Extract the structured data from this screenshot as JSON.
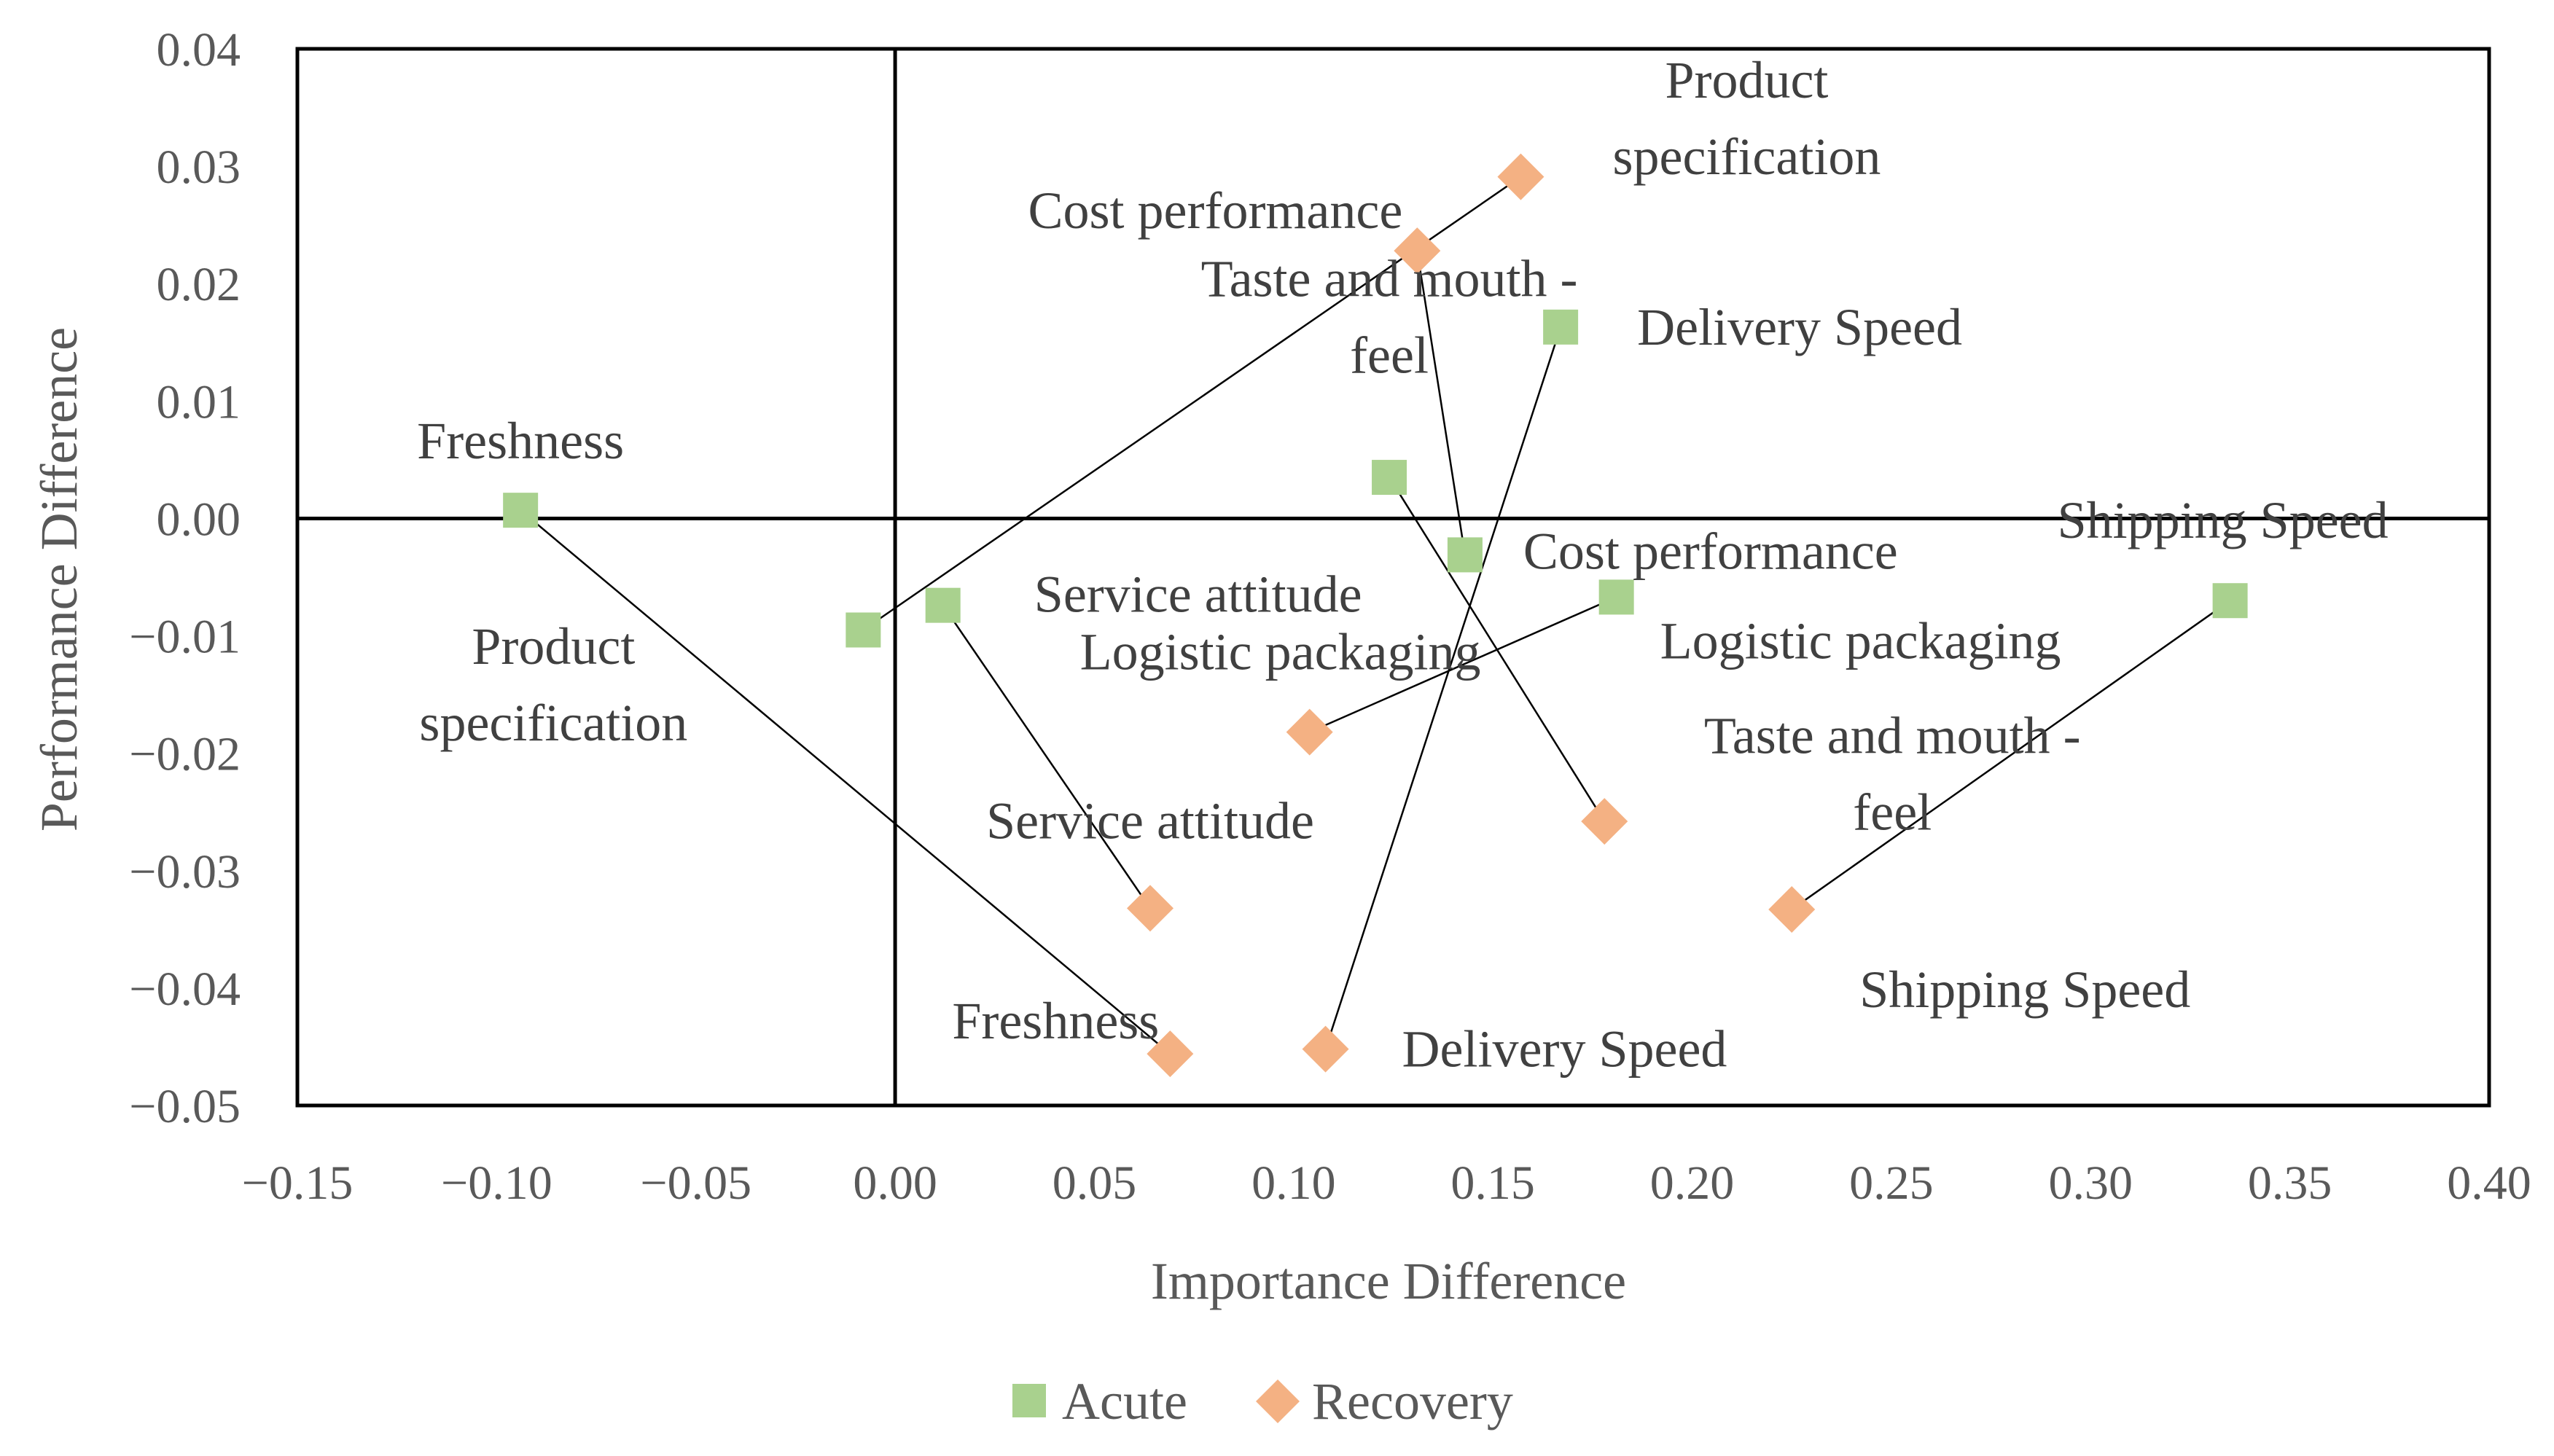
{
  "chart_data": {
    "type": "scatter",
    "xlabel": "Importance Difference",
    "ylabel": "Performance Difference",
    "xlim": [
      -0.15,
      0.4
    ],
    "ylim": [
      -0.05,
      0.04
    ],
    "x_ticks": [
      "−0.15",
      "−0.10",
      "−0.05",
      "0.00",
      "0.05",
      "0.10",
      "0.15",
      "0.20",
      "0.25",
      "0.30",
      "0.35",
      "0.40"
    ],
    "y_ticks": [
      "0.04",
      "0.03",
      "0.02",
      "0.01",
      "0.00",
      "−0.01",
      "−0.02",
      "−0.03",
      "−0.04",
      "−0.05"
    ],
    "grid": false,
    "legend_position": "bottom",
    "colors": {
      "Acute": "#a9d18e",
      "Recovery": "#f4b183"
    },
    "series": [
      {
        "name": "Acute",
        "marker": "square",
        "points": [
          {
            "label": "Freshness",
            "label_lines": [
              "Freshness"
            ],
            "x": -0.094,
            "y": 0.0007
          },
          {
            "label": "Product specification",
            "label_lines": [
              "Product",
              "specification"
            ],
            "x": -0.008,
            "y": -0.0095
          },
          {
            "label": "Service attitude",
            "label_lines": [
              "Service attitude"
            ],
            "x": 0.012,
            "y": -0.0074
          },
          {
            "label": "Taste and mouth-feel",
            "label_lines": [
              "Taste and mouth -",
              "feel"
            ],
            "x": 0.124,
            "y": 0.0035
          },
          {
            "label": "Cost performance",
            "label_lines": [
              "Cost performance"
            ],
            "x": 0.143,
            "y": -0.0031
          },
          {
            "label": "Delivery Speed",
            "label_lines": [
              "Delivery Speed"
            ],
            "x": 0.167,
            "y": 0.0163
          },
          {
            "label": "Logistic packaging",
            "label_lines": [
              "Logistic packaging"
            ],
            "x": 0.181,
            "y": -0.0067
          },
          {
            "label": "Shipping Speed",
            "label_lines": [
              "Shipping Speed"
            ],
            "x": 0.335,
            "y": -0.007
          }
        ]
      },
      {
        "name": "Recovery",
        "marker": "diamond",
        "points": [
          {
            "label": "Product specification",
            "label_lines": [
              "Product",
              "specification"
            ],
            "x": 0.157,
            "y": 0.0291
          },
          {
            "label": "Cost performance",
            "label_lines": [
              "Cost performance"
            ],
            "x": 0.131,
            "y": 0.0228
          },
          {
            "label": "Logistic packaging",
            "label_lines": [
              "Logistic packaging"
            ],
            "x": 0.104,
            "y": -0.0182
          },
          {
            "label": "Taste and mouth-feel",
            "label_lines": [
              "Taste and mouth -",
              "feel"
            ],
            "x": 0.178,
            "y": -0.0258
          },
          {
            "label": "Service attitude",
            "label_lines": [
              "Service attitude"
            ],
            "x": 0.064,
            "y": -0.0332
          },
          {
            "label": "Shipping Speed",
            "label_lines": [
              "Shipping Speed"
            ],
            "x": 0.225,
            "y": -0.0333
          },
          {
            "label": "Freshness",
            "label_lines": [
              "Freshness"
            ],
            "x": 0.069,
            "y": -0.0456
          },
          {
            "label": "Delivery Speed",
            "label_lines": [
              "Delivery Speed"
            ],
            "x": 0.108,
            "y": -0.0452
          }
        ]
      }
    ],
    "connectors": [
      [
        "Freshness",
        "Freshness"
      ],
      [
        "Product specification",
        "Product specification"
      ],
      [
        "Service attitude",
        "Service attitude"
      ],
      [
        "Taste and mouth-feel",
        "Taste and mouth-feel"
      ],
      [
        "Cost performance",
        "Cost performance"
      ],
      [
        "Delivery Speed",
        "Delivery Speed"
      ],
      [
        "Logistic packaging",
        "Logistic packaging"
      ],
      [
        "Shipping Speed",
        "Shipping Speed"
      ]
    ]
  }
}
